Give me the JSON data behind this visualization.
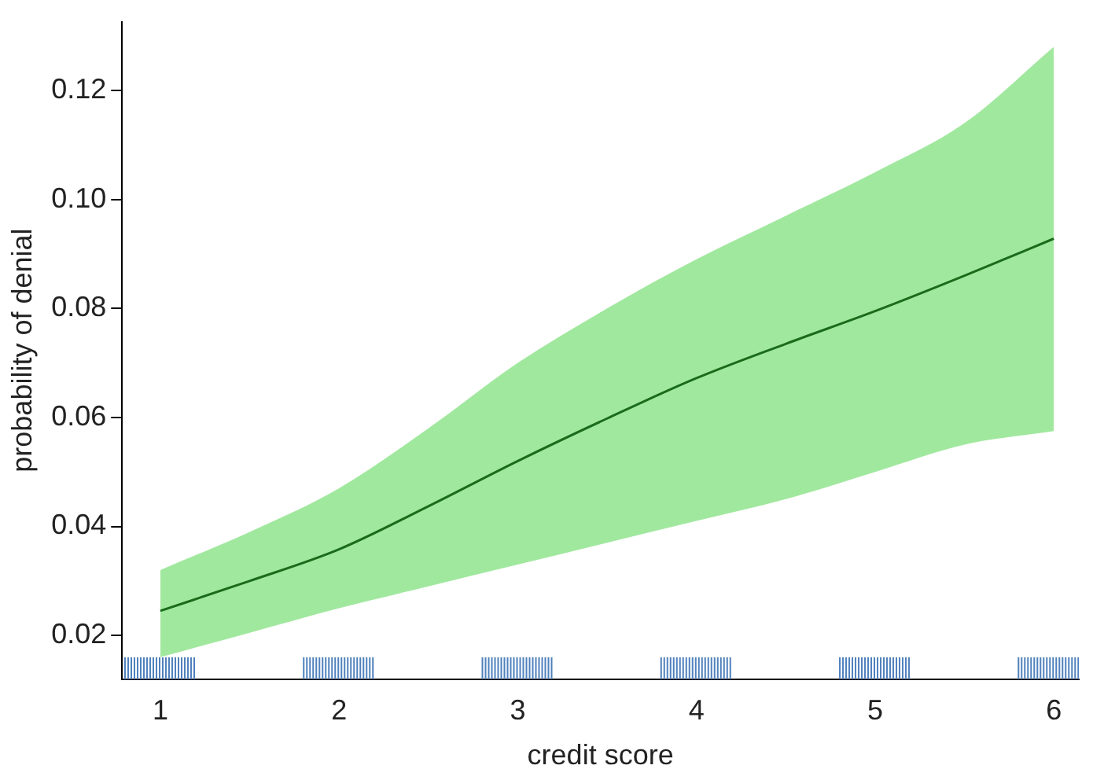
{
  "chart_data": {
    "type": "line",
    "xlabel": "credit score",
    "ylabel": "probability of denial",
    "x": [
      1,
      1.5,
      2,
      2.5,
      3,
      3.5,
      4,
      4.5,
      5,
      5.5,
      6
    ],
    "series": [
      {
        "color": "#1a6b1a",
        "values": [
          0.0245,
          0.03,
          0.0358,
          0.0437,
          0.052,
          0.0598,
          0.0672,
          0.0735,
          0.0795,
          0.086,
          0.0928
        ],
        "lower": [
          0.016,
          0.0205,
          0.025,
          0.029,
          0.033,
          0.037,
          0.041,
          0.045,
          0.05,
          0.055,
          0.0575
        ],
        "upper": [
          0.032,
          0.039,
          0.047,
          0.058,
          0.07,
          0.08,
          0.089,
          0.097,
          0.105,
          0.114,
          0.128
        ]
      }
    ],
    "xlim": [
      0.786,
      6.14
    ],
    "xticks": [
      1,
      2,
      3,
      4,
      5,
      6
    ],
    "ylim": [
      0.012,
      0.1326
    ],
    "yticks": [
      0.02,
      0.04,
      0.06,
      0.08,
      {
        "value": 0.1,
        "label": "0.10"
      },
      0.12
    ],
    "grid": false,
    "legend": false,
    "marker": "none",
    "line_style": "solid"
  }
}
